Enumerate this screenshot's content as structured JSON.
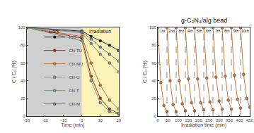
{
  "chart_data": [
    {
      "type": "line",
      "x_label": "Time (min)",
      "y_label": "C / C₀ (%)",
      "x": [
        -30,
        0,
        5,
        10,
        15,
        20
      ],
      "xlim": [
        -30,
        20
      ],
      "xticks": [
        -30,
        -20,
        -10,
        0,
        10,
        20
      ],
      "ylim": [
        0,
        100
      ],
      "yticks": [
        0,
        20,
        40,
        60,
        80,
        100
      ],
      "legend": "bottom left",
      "marker": "circle",
      "regions": [
        {
          "label": "Dark",
          "x0": -30,
          "x1": 0,
          "color": "#cfcfcf"
        },
        {
          "label": "Irradiation",
          "x0": 0,
          "x1": 20,
          "color": "#fbf3b8"
        }
      ],
      "series": [
        {
          "name": "P25",
          "color": "#1a1a1a",
          "values": [
            100,
            96,
            90,
            85,
            80,
            74
          ]
        },
        {
          "name": "CN-TU",
          "color": "#a3282a",
          "values": [
            100,
            88,
            45,
            20,
            8,
            3
          ]
        },
        {
          "name": "CN-MU",
          "color": "#c8743a",
          "values": [
            100,
            90,
            60,
            35,
            18,
            8
          ]
        },
        {
          "name": "CN-U",
          "color": "#8a8a8a",
          "values": [
            100,
            94,
            82,
            70,
            60,
            50
          ]
        },
        {
          "name": "CN-T",
          "color": "#7f9a86",
          "values": [
            100,
            85,
            40,
            15,
            5,
            2
          ]
        },
        {
          "name": "CN-M",
          "color": "#6e7f96",
          "values": [
            100,
            95,
            87,
            78,
            70,
            62
          ]
        }
      ]
    },
    {
      "type": "line",
      "title": "g-C₃N₄/alg bead",
      "x_label": "Irradiation time (min)",
      "y_label": "C / C₀ (%)",
      "xlim": [
        0,
        450
      ],
      "xticks": [
        0,
        50,
        100,
        150,
        200,
        250,
        300,
        350,
        400,
        450
      ],
      "ylim": [
        0,
        100
      ],
      "yticks": [
        0,
        20,
        40,
        60,
        80,
        100
      ],
      "color": "#c8743a",
      "marker": "circle",
      "cycles": [
        {
          "label": "1st",
          "x": [
            0,
            15,
            30,
            45
          ],
          "values": [
            100,
            38,
            12,
            5
          ]
        },
        {
          "label": "2nd",
          "x": [
            45,
            60,
            75,
            90
          ],
          "values": [
            100,
            40,
            13,
            5
          ]
        },
        {
          "label": "3rd",
          "x": [
            90,
            105,
            120,
            135
          ],
          "values": [
            100,
            40,
            14,
            6
          ]
        },
        {
          "label": "4th",
          "x": [
            135,
            150,
            165,
            180
          ],
          "values": [
            100,
            42,
            15,
            6
          ]
        },
        {
          "label": "5th",
          "x": [
            180,
            195,
            210,
            225
          ],
          "values": [
            100,
            42,
            15,
            7
          ]
        },
        {
          "label": "6th",
          "x": [
            225,
            240,
            255,
            270
          ],
          "values": [
            100,
            43,
            16,
            7
          ]
        },
        {
          "label": "7th",
          "x": [
            270,
            285,
            300,
            315
          ],
          "values": [
            100,
            44,
            17,
            8
          ]
        },
        {
          "label": "8th",
          "x": [
            315,
            330,
            345,
            360
          ],
          "values": [
            100,
            45,
            18,
            8
          ]
        },
        {
          "label": "9th",
          "x": [
            360,
            375,
            390,
            405
          ],
          "values": [
            100,
            46,
            19,
            9
          ]
        },
        {
          "label": "10th",
          "x": [
            405,
            420,
            435,
            450
          ],
          "values": [
            100,
            47,
            20,
            10
          ]
        }
      ]
    }
  ]
}
